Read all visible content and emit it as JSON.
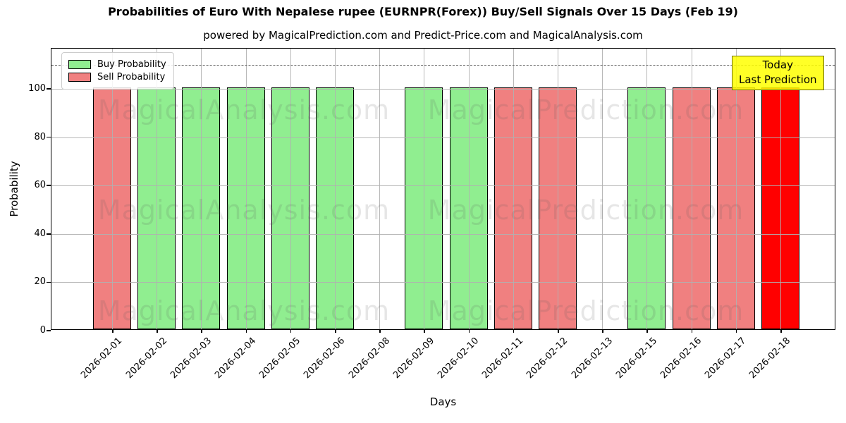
{
  "chart_data": {
    "type": "bar",
    "title": "Probabilities of Euro With Nepalese rupee (EURNPR(Forex)) Buy/Sell Signals Over 15 Days (Feb 19)",
    "subtitle": "powered by MagicalPrediction.com and Predict-Price.com and MagicalAnalysis.com",
    "xlabel": "Days",
    "ylabel": "Probability",
    "ylim": [
      0,
      116.6
    ],
    "yticks": [
      0,
      20,
      40,
      60,
      80,
      100
    ],
    "grid": true,
    "dashed_guide_y": 110,
    "categories": [
      "2026-02-01",
      "2026-02-02",
      "2026-02-03",
      "2026-02-04",
      "2026-02-05",
      "2026-02-06",
      "2026-02-08",
      "2026-02-09",
      "2026-02-10",
      "2026-02-11",
      "2026-02-12",
      "2026-02-13",
      "2026-02-15",
      "2026-02-16",
      "2026-02-17",
      "2026-02-18"
    ],
    "series": [
      {
        "name": "Buy Probability",
        "color": "#90ee90",
        "values": [
          0,
          100,
          100,
          100,
          100,
          100,
          0,
          100,
          100,
          0,
          0,
          0,
          100,
          0,
          0,
          0
        ]
      },
      {
        "name": "Sell Probability",
        "color": "#f08080",
        "values": [
          100,
          0,
          0,
          0,
          0,
          0,
          0,
          0,
          0,
          100,
          100,
          0,
          0,
          100,
          100,
          0
        ]
      },
      {
        "name": "Today Last Prediction",
        "color": "#ff0000",
        "values": [
          0,
          0,
          0,
          0,
          0,
          0,
          0,
          0,
          0,
          0,
          0,
          0,
          0,
          0,
          0,
          100
        ]
      }
    ],
    "legend": {
      "position": "upper-left",
      "entries": [
        {
          "label": "Buy Probability",
          "color": "#90ee90"
        },
        {
          "label": "Sell Probability",
          "color": "#f08080"
        }
      ]
    },
    "annotation": {
      "lines": [
        "Today",
        "Last Prediction"
      ],
      "bg_color": "#ffff00"
    },
    "watermarks": [
      "MagicalAnalysis.com",
      "MagicalPrediction.com"
    ],
    "colors": {
      "buy": "#90ee90",
      "sell": "#f08080",
      "today": "#ff0000",
      "bar_edge": "#000000",
      "grid": "#b0b0b0",
      "annotation_bg": "#ffff00"
    }
  }
}
